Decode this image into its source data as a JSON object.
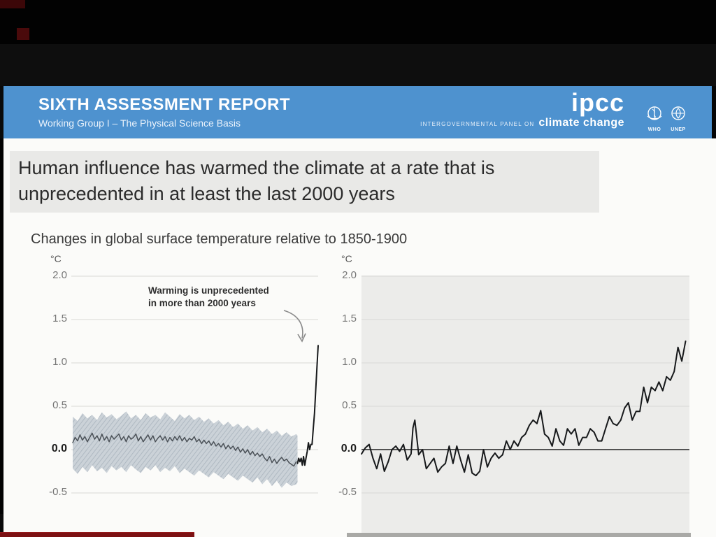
{
  "colors": {
    "header_blue": "#4e92cf",
    "title_box": "#e9e9e7",
    "slide_bg": "#fbfbf9",
    "right_plot_bg": "#ececea",
    "grid": "#d8d8d5",
    "band_fill": "#c6cdd4",
    "band_hatch": "#9fabb6",
    "paleo_line": "#4b5157",
    "obs_line": "#17191b",
    "zero_line": "#3c3c3c",
    "red_bar": "#7c1113",
    "annotation_arrow": "#8a8a8a"
  },
  "header": {
    "title": "SIXTH ASSESSMENT REPORT",
    "subtitle": "Working Group I – The Physical Science Basis",
    "logo_word": "ipcc",
    "logo_tagline_small": "INTERGOVERNMENTAL PANEL ON",
    "logo_tagline_large": "climate change",
    "orgs": [
      {
        "label": "WHO"
      },
      {
        "label": "UNEP"
      }
    ]
  },
  "slide": {
    "headline_line1": "Human influence has warmed the climate at a rate that is",
    "headline_line2": "unprecedented in at least the last 2000 years",
    "chart_caption": "Changes in global surface temperature relative to 1850-1900",
    "annotation_line1": "Warming is unprecedented",
    "annotation_line2": "in more than 2000 years"
  },
  "chart_data": [
    {
      "type": "line",
      "title": "Reconstructed and observed global surface temperature change, years 1-2020",
      "unit_label": "°C",
      "xlabel": "",
      "ylabel": "°C",
      "x_domain": [
        0,
        2020
      ],
      "ylim": [
        -0.75,
        2.1
      ],
      "grid": true,
      "yticks": [
        "2.0",
        "1.5",
        "1.0",
        "0.5",
        "0.0",
        "-0.5"
      ],
      "ytick_values": [
        2.0,
        1.5,
        1.0,
        0.5,
        0.0,
        -0.5
      ],
      "zero_axis_dark": false,
      "plot_bg": null,
      "annotation": "Warming is unprecedented in more than 2000 years",
      "band": {
        "name": "reconstructed-uncertainty-band",
        "years": [
          0,
          40,
          80,
          120,
          160,
          200,
          240,
          280,
          320,
          360,
          400,
          440,
          480,
          520,
          560,
          600,
          640,
          680,
          720,
          760,
          800,
          840,
          880,
          920,
          960,
          1000,
          1040,
          1080,
          1120,
          1160,
          1200,
          1240,
          1280,
          1320,
          1360,
          1400,
          1440,
          1480,
          1520,
          1560,
          1600,
          1640,
          1680,
          1720,
          1760,
          1800,
          1840,
          1850
        ],
        "upper": [
          0.38,
          0.33,
          0.42,
          0.36,
          0.4,
          0.34,
          0.43,
          0.37,
          0.41,
          0.35,
          0.39,
          0.44,
          0.36,
          0.4,
          0.34,
          0.42,
          0.37,
          0.4,
          0.35,
          0.43,
          0.38,
          0.33,
          0.41,
          0.36,
          0.4,
          0.34,
          0.38,
          0.32,
          0.36,
          0.3,
          0.34,
          0.28,
          0.32,
          0.26,
          0.3,
          0.24,
          0.28,
          0.22,
          0.26,
          0.2,
          0.24,
          0.18,
          0.22,
          0.16,
          0.2,
          0.15,
          0.18,
          0.16
        ],
        "lower": [
          -0.22,
          -0.28,
          -0.2,
          -0.26,
          -0.18,
          -0.25,
          -0.21,
          -0.27,
          -0.19,
          -0.24,
          -0.2,
          -0.26,
          -0.18,
          -0.23,
          -0.27,
          -0.2,
          -0.24,
          -0.18,
          -0.26,
          -0.21,
          -0.25,
          -0.19,
          -0.27,
          -0.22,
          -0.26,
          -0.3,
          -0.24,
          -0.28,
          -0.32,
          -0.26,
          -0.3,
          -0.34,
          -0.28,
          -0.32,
          -0.36,
          -0.3,
          -0.34,
          -0.38,
          -0.32,
          -0.4,
          -0.34,
          -0.42,
          -0.36,
          -0.44,
          -0.38,
          -0.42,
          -0.4,
          -0.38
        ]
      },
      "series": [
        {
          "name": "paleo-reconstruction-median",
          "width": 1.5,
          "x": [
            0,
            20,
            40,
            60,
            80,
            100,
            120,
            140,
            160,
            180,
            200,
            220,
            240,
            260,
            280,
            300,
            320,
            340,
            360,
            380,
            400,
            420,
            440,
            460,
            480,
            500,
            520,
            540,
            560,
            580,
            600,
            620,
            640,
            660,
            680,
            700,
            720,
            740,
            760,
            780,
            800,
            820,
            840,
            860,
            880,
            900,
            920,
            940,
            960,
            980,
            1000,
            1020,
            1040,
            1060,
            1080,
            1100,
            1120,
            1140,
            1160,
            1180,
            1200,
            1220,
            1240,
            1260,
            1280,
            1300,
            1320,
            1340,
            1360,
            1380,
            1400,
            1420,
            1440,
            1460,
            1480,
            1500,
            1520,
            1540,
            1560,
            1580,
            1600,
            1620,
            1640,
            1660,
            1680,
            1700,
            1720,
            1740,
            1760,
            1780,
            1800,
            1820,
            1840
          ],
          "y": [
            0.08,
            0.14,
            0.1,
            0.17,
            0.11,
            0.15,
            0.09,
            0.14,
            0.19,
            0.12,
            0.16,
            0.1,
            0.18,
            0.11,
            0.15,
            0.09,
            0.16,
            0.12,
            0.15,
            0.18,
            0.11,
            0.15,
            0.09,
            0.16,
            0.12,
            0.14,
            0.18,
            0.1,
            0.15,
            0.09,
            0.13,
            0.17,
            0.11,
            0.16,
            0.09,
            0.13,
            0.16,
            0.11,
            0.15,
            0.09,
            0.14,
            0.1,
            0.15,
            0.11,
            0.16,
            0.1,
            0.14,
            0.09,
            0.13,
            0.11,
            0.15,
            0.09,
            0.12,
            0.07,
            0.11,
            0.07,
            0.1,
            0.05,
            0.09,
            0.04,
            0.07,
            0.03,
            0.07,
            0.01,
            0.05,
            0.01,
            0.04,
            -0.01,
            0.03,
            -0.03,
            0.01,
            -0.04,
            0.0,
            -0.06,
            -0.02,
            -0.07,
            -0.04,
            -0.08,
            -0.05,
            -0.1,
            -0.13,
            -0.08,
            -0.15,
            -0.11,
            -0.16,
            -0.12,
            -0.09,
            -0.13,
            -0.11,
            -0.15,
            -0.17,
            -0.19,
            -0.14
          ]
        },
        {
          "name": "observed-warming-spike",
          "width": 2,
          "x": [
            1850,
            1860,
            1870,
            1880,
            1890,
            1900,
            1910,
            1920,
            1930,
            1940,
            1950,
            1960,
            1970,
            1980,
            1990,
            2000,
            2010,
            2020
          ],
          "y": [
            -0.16,
            -0.1,
            -0.14,
            -0.1,
            -0.18,
            -0.08,
            -0.18,
            -0.1,
            -0.02,
            0.08,
            0.0,
            0.06,
            0.06,
            0.24,
            0.42,
            0.68,
            0.95,
            1.2
          ]
        }
      ]
    },
    {
      "type": "line",
      "title": "Observed annual global surface temperature change, 1850-2020",
      "unit_label": "°C",
      "xlabel": "",
      "ylabel": "°C",
      "x_domain": [
        1850,
        2022
      ],
      "ylim": [
        -0.75,
        2.1
      ],
      "grid": true,
      "yticks": [
        "2.0",
        "1.5",
        "1.0",
        "0.5",
        "0.0",
        "-0.5"
      ],
      "ytick_values": [
        2.0,
        1.5,
        1.0,
        0.5,
        0.0,
        -0.5
      ],
      "zero_axis_dark": true,
      "plot_bg": "#ececea",
      "series": [
        {
          "name": "observed-annual-temperature",
          "width": 2,
          "x": [
            1850,
            1852,
            1854,
            1856,
            1858,
            1860,
            1862,
            1864,
            1866,
            1868,
            1870,
            1872,
            1874,
            1876,
            1877,
            1878,
            1880,
            1882,
            1884,
            1886,
            1888,
            1890,
            1892,
            1894,
            1896,
            1898,
            1900,
            1902,
            1904,
            1906,
            1908,
            1910,
            1912,
            1914,
            1916,
            1918,
            1920,
            1922,
            1924,
            1926,
            1928,
            1930,
            1932,
            1934,
            1936,
            1938,
            1940,
            1942,
            1944,
            1946,
            1948,
            1950,
            1952,
            1954,
            1956,
            1958,
            1960,
            1962,
            1964,
            1966,
            1968,
            1970,
            1972,
            1974,
            1976,
            1978,
            1980,
            1982,
            1984,
            1986,
            1988,
            1990,
            1992,
            1994,
            1996,
            1998,
            2000,
            2002,
            2004,
            2006,
            2008,
            2010,
            2012,
            2014,
            2016,
            2018,
            2020
          ],
          "y": [
            -0.05,
            0.02,
            0.06,
            -0.1,
            -0.22,
            -0.05,
            -0.25,
            -0.14,
            0.0,
            0.04,
            -0.02,
            0.06,
            -0.12,
            -0.05,
            0.25,
            0.34,
            -0.06,
            0.0,
            -0.22,
            -0.16,
            -0.1,
            -0.26,
            -0.2,
            -0.16,
            0.04,
            -0.16,
            0.04,
            -0.12,
            -0.26,
            -0.06,
            -0.27,
            -0.3,
            -0.25,
            0.0,
            -0.2,
            -0.1,
            -0.04,
            -0.1,
            -0.06,
            0.1,
            0.0,
            0.1,
            0.04,
            0.14,
            0.18,
            0.28,
            0.34,
            0.3,
            0.45,
            0.18,
            0.14,
            0.04,
            0.24,
            0.1,
            0.05,
            0.24,
            0.18,
            0.24,
            0.05,
            0.14,
            0.14,
            0.24,
            0.2,
            0.1,
            0.1,
            0.24,
            0.38,
            0.3,
            0.28,
            0.34,
            0.48,
            0.54,
            0.34,
            0.44,
            0.44,
            0.72,
            0.54,
            0.72,
            0.68,
            0.78,
            0.68,
            0.84,
            0.8,
            0.9,
            1.18,
            1.02,
            1.25
          ]
        }
      ]
    }
  ]
}
